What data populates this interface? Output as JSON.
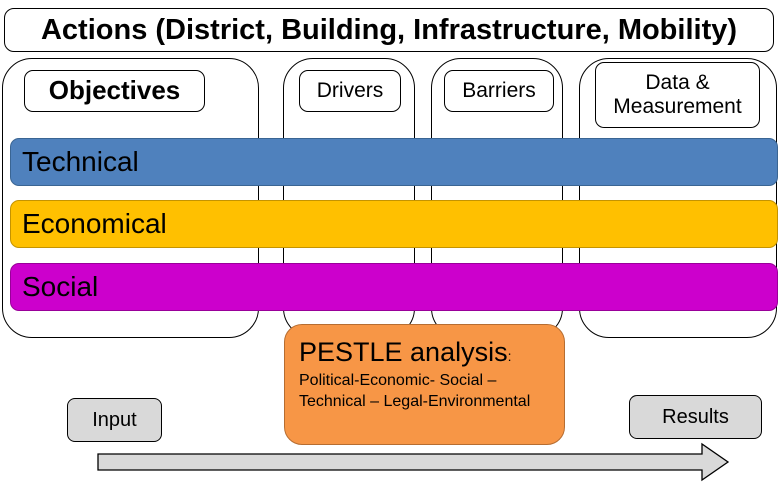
{
  "title": "Actions (District, Building, Infrastructure, Mobility)",
  "columns": {
    "objectives": "Objectives",
    "drivers": "Drivers",
    "barriers": "Barriers",
    "data_measurement": "Data & Measurement"
  },
  "rows": [
    {
      "label": "Technical",
      "color": "#4f81bd"
    },
    {
      "label": "Economical",
      "color": "#ffc000"
    },
    {
      "label": "Social",
      "color": "#cc00cc"
    }
  ],
  "pestle": {
    "title": "PESTLE analysis",
    "colon": ":",
    "body": "Political-Economic- Social – Technical – Legal-Environmental",
    "color": "#f79646"
  },
  "flow": {
    "input": "Input",
    "results": "Results"
  }
}
